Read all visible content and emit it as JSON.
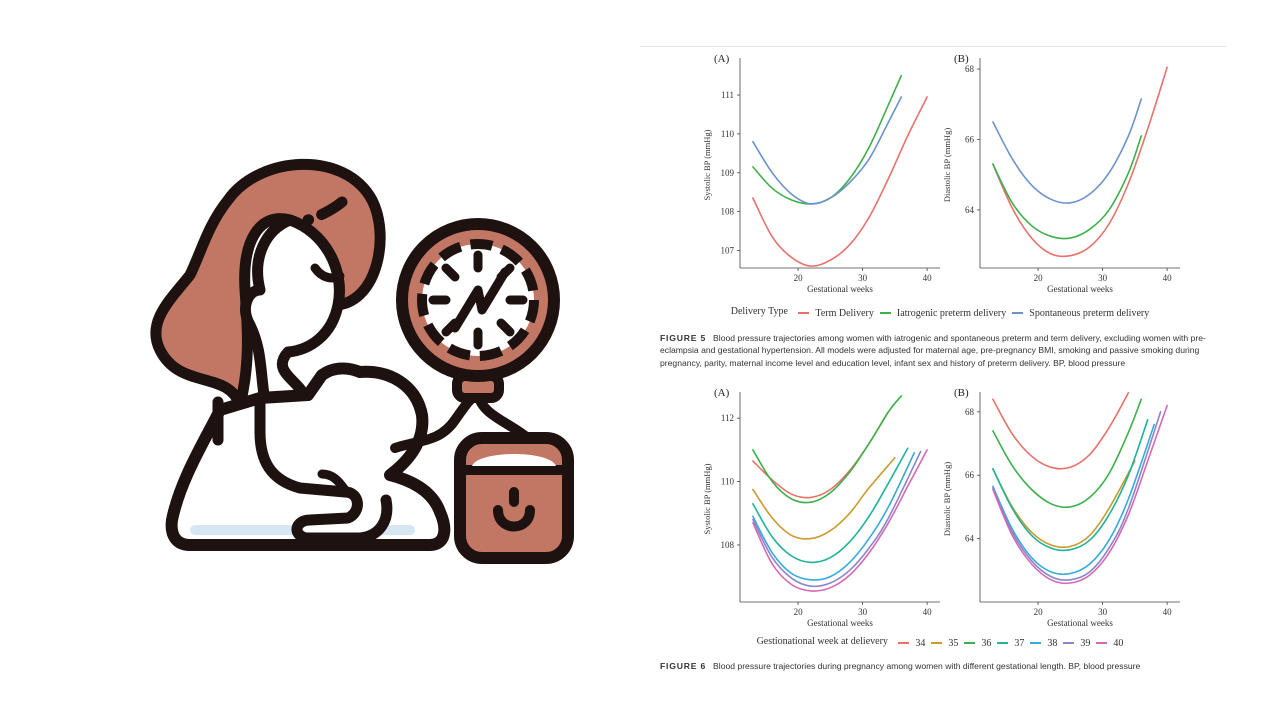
{
  "figure5": {
    "delivery_type_label": "Delivery Type",
    "caption_label": "FIGURE 5",
    "caption_text": "Blood pressure trajectories among women with iatrogenic and spontaneous preterm and term delivery, excluding women with pre-eclampsia and gestational hypertension. All models were adjusted for maternal age, pre-pregnancy BMI, smoking and passive smoking during pregnancy, parity, maternal income level and education level, infant sex and history of preterm delivery. BP, blood pressure"
  },
  "figure6": {
    "legend_title": "Gestionational week at delievery",
    "caption_label": "FIGURE 6",
    "caption_text": "Blood pressure trajectories during pregnancy among women with different gestational length. BP, blood pressure"
  },
  "chart_data": [
    {
      "panel": "(A)",
      "type": "line",
      "xlabel": "Gestational weeks",
      "ylabel": "Systolic BP (mmHg)",
      "xticks": [
        20,
        30,
        40
      ],
      "yticks": [
        107,
        108,
        109,
        110,
        111
      ],
      "xlim": [
        11,
        42
      ],
      "ylim": [
        106.55,
        111.85
      ],
      "grid": false,
      "legend": "bottom",
      "series": [
        {
          "name": "Term Delivery",
          "color": "#e8716b",
          "x": [
            13,
            16,
            19,
            22,
            25,
            28,
            31,
            34,
            37,
            40
          ],
          "y": [
            108.35,
            107.35,
            106.82,
            106.6,
            106.75,
            107.15,
            107.85,
            108.85,
            109.95,
            110.95
          ]
        },
        {
          "name": "Iatrogenic preterm delivery",
          "color": "#3cb04a",
          "x": [
            13,
            16,
            19,
            22,
            25,
            28,
            31,
            34,
            36
          ],
          "y": [
            109.15,
            108.6,
            108.3,
            108.2,
            108.35,
            108.85,
            109.65,
            110.75,
            111.5
          ]
        },
        {
          "name": "Spontaneous preterm delivery",
          "color": "#6b93cb",
          "x": [
            13,
            16,
            19,
            22,
            25,
            28,
            31,
            34,
            36
          ],
          "y": [
            109.8,
            109.0,
            108.45,
            108.2,
            108.35,
            108.75,
            109.35,
            110.3,
            110.95
          ]
        }
      ]
    },
    {
      "panel": "(B)",
      "type": "line",
      "xlabel": "Gestational weeks",
      "ylabel": "Diastolic BP (mmHg)",
      "xticks": [
        20,
        30,
        40
      ],
      "yticks": [
        64,
        66,
        68
      ],
      "xlim": [
        11,
        42
      ],
      "ylim": [
        62.35,
        68.2
      ],
      "grid": false,
      "legend": "bottom",
      "series": [
        {
          "name": "Term Delivery",
          "color": "#e8716b",
          "x": [
            13,
            16,
            19,
            22,
            25,
            28,
            31,
            34,
            37,
            40
          ],
          "y": [
            65.3,
            64.05,
            63.2,
            62.75,
            62.7,
            62.95,
            63.6,
            64.75,
            66.3,
            68.05
          ]
        },
        {
          "name": "Iatrogenic preterm delivery",
          "color": "#3cb04a",
          "x": [
            13,
            16,
            19,
            22,
            25,
            28,
            31,
            34,
            36
          ],
          "y": [
            65.3,
            64.2,
            63.55,
            63.25,
            63.2,
            63.45,
            64.0,
            65.05,
            66.1
          ]
        },
        {
          "name": "Spontaneous preterm delivery",
          "color": "#6b93cb",
          "x": [
            13,
            16,
            19,
            22,
            25,
            28,
            31,
            34,
            36
          ],
          "y": [
            66.5,
            65.45,
            64.7,
            64.3,
            64.2,
            64.45,
            65.05,
            66.1,
            67.15
          ]
        }
      ]
    },
    {
      "panel": "(A)",
      "type": "line",
      "xlabel": "Gestational weeks",
      "ylabel": "Systolic BP (mmHg)",
      "xticks": [
        20,
        30,
        40
      ],
      "yticks": [
        108,
        110,
        112
      ],
      "xlim": [
        11,
        42
      ],
      "ylim": [
        106.2,
        112.7
      ],
      "grid": false,
      "legend": "bottom",
      "series": [
        {
          "name": "34",
          "color": "#e8716b",
          "x": [
            13,
            16,
            19,
            22,
            25,
            28,
            31,
            34
          ],
          "y": [
            110.65,
            110.05,
            109.6,
            109.5,
            109.75,
            110.35,
            111.2,
            112.2
          ]
        },
        {
          "name": "35",
          "color": "#c99a2e",
          "x": [
            13,
            16,
            19,
            22,
            25,
            28,
            31,
            35
          ],
          "y": [
            109.75,
            108.85,
            108.3,
            108.2,
            108.45,
            109.0,
            109.8,
            110.75
          ]
        },
        {
          "name": "36",
          "color": "#3cb04a",
          "x": [
            13,
            16,
            19,
            22,
            25,
            28,
            31,
            34,
            36
          ],
          "y": [
            111.0,
            110.0,
            109.45,
            109.35,
            109.65,
            110.3,
            111.2,
            112.2,
            112.7
          ]
        },
        {
          "name": "37",
          "color": "#1fb39a",
          "x": [
            13,
            16,
            19,
            22,
            25,
            28,
            31,
            34,
            37
          ],
          "y": [
            109.3,
            108.25,
            107.65,
            107.45,
            107.6,
            108.1,
            108.9,
            109.95,
            111.05
          ]
        },
        {
          "name": "38",
          "color": "#37a9e0",
          "x": [
            13,
            16,
            19,
            22,
            25,
            28,
            31,
            34,
            38
          ],
          "y": [
            108.9,
            107.75,
            107.1,
            106.9,
            107.0,
            107.45,
            108.2,
            109.2,
            110.9
          ]
        },
        {
          "name": "39",
          "color": "#8a86c8",
          "x": [
            13,
            16,
            19,
            22,
            25,
            28,
            31,
            34,
            39
          ],
          "y": [
            108.8,
            107.6,
            106.95,
            106.7,
            106.8,
            107.2,
            107.9,
            108.85,
            110.95
          ]
        },
        {
          "name": "40",
          "color": "#d569b5",
          "x": [
            13,
            16,
            19,
            22,
            25,
            28,
            31,
            34,
            37,
            40
          ],
          "y": [
            108.7,
            107.4,
            106.75,
            106.55,
            106.65,
            107.05,
            107.75,
            108.7,
            109.85,
            111.0
          ]
        }
      ]
    },
    {
      "panel": "(B)",
      "type": "line",
      "xlabel": "Gestational weeks",
      "ylabel": "Diastolic BP (mmHg)",
      "xticks": [
        20,
        30,
        40
      ],
      "yticks": [
        64,
        66,
        68
      ],
      "xlim": [
        11,
        42
      ],
      "ylim": [
        62.0,
        68.5
      ],
      "grid": false,
      "legend": "bottom",
      "series": [
        {
          "name": "34",
          "color": "#e8716b",
          "x": [
            13,
            16,
            19,
            22,
            25,
            28,
            31,
            34
          ],
          "y": [
            68.4,
            67.3,
            66.6,
            66.25,
            66.25,
            66.65,
            67.5,
            68.6
          ]
        },
        {
          "name": "35",
          "color": "#c99a2e",
          "x": [
            13,
            16,
            19,
            22,
            25,
            28,
            31,
            35
          ],
          "y": [
            66.2,
            65.0,
            64.2,
            63.8,
            63.75,
            64.1,
            64.95,
            66.45
          ]
        },
        {
          "name": "36",
          "color": "#3cb04a",
          "x": [
            13,
            16,
            19,
            22,
            25,
            28,
            31,
            34,
            36
          ],
          "y": [
            67.4,
            66.3,
            65.55,
            65.1,
            65.0,
            65.3,
            66.05,
            67.35,
            68.4
          ]
        },
        {
          "name": "37",
          "color": "#1fb39a",
          "x": [
            13,
            16,
            19,
            22,
            25,
            28,
            31,
            34,
            37
          ],
          "y": [
            66.2,
            64.95,
            64.1,
            63.7,
            63.65,
            63.95,
            64.75,
            66.0,
            67.75
          ]
        },
        {
          "name": "38",
          "color": "#37a9e0",
          "x": [
            13,
            16,
            19,
            22,
            25,
            28,
            31,
            34,
            38
          ],
          "y": [
            65.65,
            64.3,
            63.4,
            62.95,
            62.9,
            63.2,
            63.95,
            65.25,
            67.6
          ]
        },
        {
          "name": "39",
          "color": "#8a86c8",
          "x": [
            13,
            16,
            19,
            22,
            25,
            28,
            31,
            34,
            39
          ],
          "y": [
            65.6,
            64.2,
            63.3,
            62.8,
            62.7,
            62.95,
            63.7,
            64.95,
            68.0
          ]
        },
        {
          "name": "40",
          "color": "#d569b5",
          "x": [
            13,
            16,
            19,
            22,
            25,
            28,
            31,
            34,
            37,
            40
          ],
          "y": [
            65.55,
            64.1,
            63.2,
            62.7,
            62.6,
            62.85,
            63.55,
            64.75,
            66.45,
            68.2
          ]
        }
      ]
    }
  ]
}
